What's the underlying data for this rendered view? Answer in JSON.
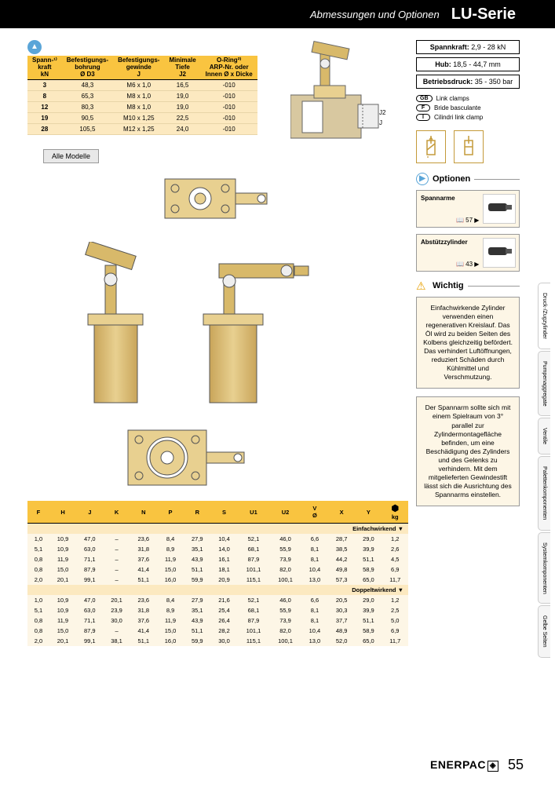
{
  "header": {
    "subtitle": "Abmessungen und Optionen",
    "title": "LU-Serie"
  },
  "page_number": "55",
  "brand": "ENERPAC",
  "alle_modelle": "Alle Modelle",
  "table1": {
    "columns": [
      "Spann-¹⁾\nkraft\nkN",
      "Befestigungs-\nbohrung\nØ D3",
      "Befestigungs-\ngewinde\nJ",
      "Minimale\nTiefe\nJ2",
      "O-Ring²⁾\nARP-Nr. oder\nInnen Ø x Dicke"
    ],
    "rows": [
      [
        "3",
        "48,3",
        "M6 x 1,0",
        "16,5",
        "-010"
      ],
      [
        "8",
        "65,3",
        "M8 x 1,0",
        "19,0",
        "-010"
      ],
      [
        "12",
        "80,3",
        "M8 x 1,0",
        "19,0",
        "-010"
      ],
      [
        "19",
        "90,5",
        "M10 x 1,25",
        "22,5",
        "-010"
      ],
      [
        "28",
        "105,5",
        "M12 x 1,25",
        "24,0",
        "-010"
      ]
    ],
    "header_bg": "#f9c440",
    "body_bg": "#fce9c0"
  },
  "table2": {
    "columns": [
      "F",
      "H",
      "J",
      "K",
      "N",
      "P",
      "R",
      "S",
      "U1",
      "U2",
      "V\nØ",
      "X",
      "Y",
      "kg"
    ],
    "section1": "Einfachwirkend ▼",
    "section2": "Doppeltwirkend ▼",
    "rows1": [
      [
        "1,0",
        "10,9",
        "47,0",
        "–",
        "23,6",
        "8,4",
        "27,9",
        "10,4",
        "52,1",
        "46,0",
        "6,6",
        "28,7",
        "29,0",
        "1,2"
      ],
      [
        "5,1",
        "10,9",
        "63,0",
        "–",
        "31,8",
        "8,9",
        "35,1",
        "14,0",
        "68,1",
        "55,9",
        "8,1",
        "38,5",
        "39,9",
        "2,6"
      ],
      [
        "0,8",
        "11,9",
        "71,1",
        "–",
        "37,6",
        "11,9",
        "43,9",
        "16,1",
        "87,9",
        "73,9",
        "8,1",
        "44,2",
        "51,1",
        "4,5"
      ],
      [
        "0,8",
        "15,0",
        "87,9",
        "–",
        "41,4",
        "15,0",
        "51,1",
        "18,1",
        "101,1",
        "82,0",
        "10,4",
        "49,8",
        "58,9",
        "6,9"
      ],
      [
        "2,0",
        "20,1",
        "99,1",
        "–",
        "51,1",
        "16,0",
        "59,9",
        "20,9",
        "115,1",
        "100,1",
        "13,0",
        "57,3",
        "65,0",
        "11,7"
      ]
    ],
    "rows2": [
      [
        "1,0",
        "10,9",
        "47,0",
        "20,1",
        "23,6",
        "8,4",
        "27,9",
        "21,6",
        "52,1",
        "46,0",
        "6,6",
        "20,5",
        "29,0",
        "1,2"
      ],
      [
        "5,1",
        "10,9",
        "63,0",
        "23,9",
        "31,8",
        "8,9",
        "35,1",
        "25,4",
        "68,1",
        "55,9",
        "8,1",
        "30,3",
        "39,9",
        "2,5"
      ],
      [
        "0,8",
        "11,9",
        "71,1",
        "30,0",
        "37,6",
        "11,9",
        "43,9",
        "26,4",
        "87,9",
        "73,9",
        "8,1",
        "37,7",
        "51,1",
        "5,0"
      ],
      [
        "0,8",
        "15,0",
        "87,9",
        "–",
        "41,4",
        "15,0",
        "51,1",
        "28,2",
        "101,1",
        "82,0",
        "10,4",
        "48,9",
        "58,9",
        "6,9"
      ],
      [
        "2,0",
        "20,1",
        "99,1",
        "38,1",
        "51,1",
        "16,0",
        "59,9",
        "30,0",
        "115,1",
        "100,1",
        "13,0",
        "52,0",
        "65,0",
        "11,7"
      ]
    ]
  },
  "specs": {
    "spannkraft_label": "Spannkraft:",
    "spannkraft_val": "2,9 - 28 kN",
    "hub_label": "Hub:",
    "hub_val": "18,5 - 44,7 mm",
    "druck_label": "Betriebsdruck:",
    "druck_val": "35 - 350 bar"
  },
  "langs": [
    {
      "code": "GB",
      "text": "Link clamps"
    },
    {
      "code": "F",
      "text": "Bride basculante"
    },
    {
      "code": "I",
      "text": "Cilindri link clamp"
    }
  ],
  "optionen_title": "Optionen",
  "options": [
    {
      "name": "Spannarme",
      "ref": "📖 57 ▶"
    },
    {
      "name": "Abstützzylinder",
      "ref": "📖 43 ▶"
    }
  ],
  "wichtig_title": "Wichtig",
  "wichtig_text1": "Einfachwirkende Zylinder verwenden einen regenerativen Kreislauf. Das Öl wird zu beiden Seiten des Kolbens gleichzeitig befördert. Das verhindert Luftöffnungen, reduziert Schäden durch Kühlmittel und Verschmutzung.",
  "wichtig_text2": "Der Spannarm sollte sich mit einem Spielraum von 3° parallel zur Zylindermontagefläche befinden, um eine Beschädigung des Zylinders und des Gelenks zu verhindern. Mit dem mitgelieferten Gewindestift lässt sich die Ausrichtung des Spannarms einstellen.",
  "side_tabs": [
    "Druck-/Zugzylinder",
    "Pumpenaggregate",
    "Ventile",
    "Palettenkomponenten",
    "Systemkomponenten",
    "Gelbe Seiten"
  ],
  "colors": {
    "header_bg": "#000000",
    "header_fg": "#ffffff",
    "table_hdr": "#f9c440",
    "table_body": "#fce9c0",
    "table_body_light": "#fdf6e6",
    "accent_blue": "#5aa5d8",
    "accent_gold": "#c49a3a",
    "cylinder": "#d8b96a"
  }
}
